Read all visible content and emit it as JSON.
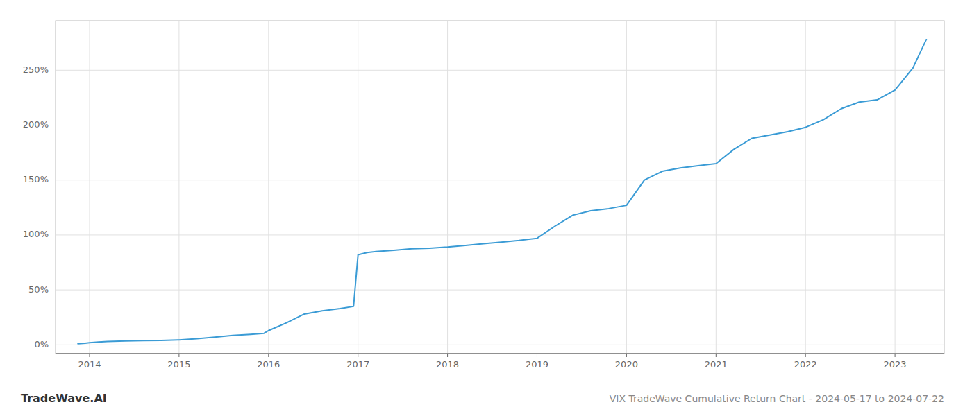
{
  "chart_data": {
    "type": "line",
    "title": "VIX TradeWave Cumulative Return Chart - 2024-05-17 to 2024-07-22",
    "annotations": [
      "TradeWave.AI"
    ],
    "color": "#3a9bd5",
    "grid": true,
    "x": [
      2013.87,
      2013.95,
      2014.0,
      2014.1,
      2014.2,
      2014.4,
      2014.6,
      2014.8,
      2015.0,
      2015.2,
      2015.4,
      2015.6,
      2015.8,
      2015.95,
      2016.0,
      2016.2,
      2016.4,
      2016.6,
      2016.8,
      2016.95,
      2017.0,
      2017.1,
      2017.2,
      2017.4,
      2017.6,
      2017.8,
      2018.0,
      2018.2,
      2018.4,
      2018.6,
      2018.8,
      2019.0,
      2019.2,
      2019.4,
      2019.6,
      2019.8,
      2020.0,
      2020.2,
      2020.4,
      2020.6,
      2020.8,
      2021.0,
      2021.2,
      2021.4,
      2021.6,
      2021.8,
      2022.0,
      2022.2,
      2022.4,
      2022.6,
      2022.8,
      2023.0,
      2023.2,
      2023.35
    ],
    "values": [
      1.0,
      1.5,
      2.0,
      2.5,
      3.0,
      3.5,
      3.8,
      4.0,
      4.5,
      5.5,
      7.0,
      8.5,
      9.5,
      10.5,
      13.0,
      20.0,
      28.0,
      31.0,
      33.0,
      35.0,
      82.0,
      84.0,
      85.0,
      86.0,
      87.5,
      88.0,
      89.0,
      90.5,
      92.0,
      93.5,
      95.0,
      97.0,
      108.0,
      118.0,
      122.0,
      124.0,
      127.0,
      150.0,
      158.0,
      161.0,
      163.0,
      165.0,
      178.0,
      188.0,
      191.0,
      194.0,
      198.0,
      205.0,
      215.0,
      221.0,
      223.0,
      232.0,
      252.0,
      278.0
    ],
    "xlim": [
      2013.62,
      2023.55
    ],
    "xticks": [
      2014,
      2015,
      2016,
      2017,
      2018,
      2019,
      2020,
      2021,
      2022,
      2023
    ],
    "ylim": [
      -8,
      295
    ],
    "yticks": [
      {
        "value": 0,
        "label": "0%"
      },
      {
        "value": 50,
        "label": "50%"
      },
      {
        "value": 100,
        "label": "100%"
      },
      {
        "value": 150,
        "label": "150%"
      },
      {
        "value": 200,
        "label": "200%"
      },
      {
        "value": 250,
        "label": "250%"
      }
    ]
  }
}
